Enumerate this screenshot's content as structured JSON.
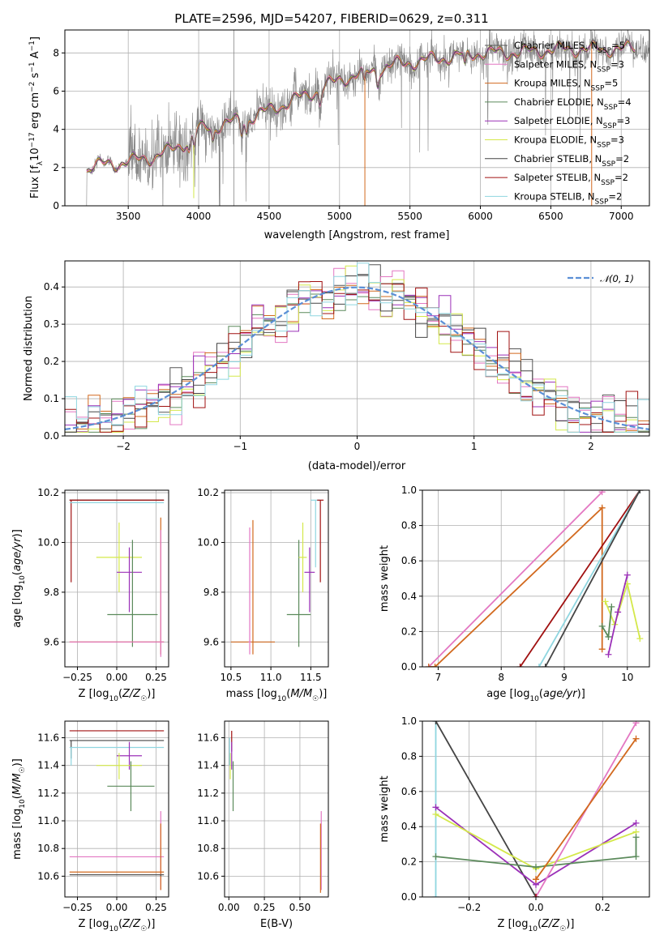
{
  "colors": {
    "chabrier_miles": "#555555",
    "salpeter_miles": "#e377c2",
    "kroupa_miles": "#d2691e",
    "chabrier_elodie": "#5b8a5b",
    "salpeter_elodie": "#9b30b8",
    "kroupa_elodie": "#d4e84a",
    "chabrier_stelib": "#444444",
    "salpeter_stelib": "#a01010",
    "kroupa_stelib": "#8fd6e0",
    "normal": "#5b8fd6"
  },
  "chart_data": [
    {
      "id": "spectrum",
      "type": "line",
      "title": "PLATE=2596, MJD=54207, FIBERID=0629, z=0.311",
      "xlabel": "wavelength [Angstrom, rest frame]",
      "ylabel": "Flux [f_λ 10^-17 erg cm^-2 s^-1 A^-1]",
      "xlim": [
        3050,
        7200
      ],
      "ylim": [
        0,
        9.2
      ],
      "xticks": [
        3500,
        4000,
        4500,
        5000,
        5500,
        6000,
        6500,
        7000
      ],
      "yticks": [
        0,
        2,
        4,
        6,
        8
      ],
      "legend_position": "right",
      "legend": [
        {
          "label": "Chabrier MILES, N_SSP=5",
          "color_key": "chabrier_miles"
        },
        {
          "label": "Salpeter MILES, N_SSP=3",
          "color_key": "salpeter_miles"
        },
        {
          "label": "Kroupa MILES, N_SSP=5",
          "color_key": "kroupa_miles"
        },
        {
          "label": "Chabrier ELODIE, N_SSP=4",
          "color_key": "chabrier_elodie"
        },
        {
          "label": "Salpeter ELODIE, N_SSP=3",
          "color_key": "salpeter_elodie"
        },
        {
          "label": "Kroupa ELODIE, N_SSP=3",
          "color_key": "kroupa_elodie"
        },
        {
          "label": "Chabrier STELIB, N_SSP=2",
          "color_key": "chabrier_stelib"
        },
        {
          "label": "Salpeter STELIB, N_SSP=2",
          "color_key": "salpeter_stelib"
        },
        {
          "label": "Kroupa STELIB, N_SSP=2",
          "color_key": "kroupa_stelib"
        }
      ],
      "continuum": {
        "x": [
          3200,
          3250,
          3400,
          3500,
          3700,
          3800,
          3900,
          4000,
          4200,
          4400,
          4600,
          4800,
          5000,
          5200,
          5400,
          5600,
          5800,
          6000,
          6200,
          6400,
          6600,
          6800,
          7000,
          7200
        ],
        "y": [
          1.9,
          2.1,
          2.2,
          2.3,
          2.6,
          2.9,
          3.3,
          4.0,
          4.3,
          4.7,
          5.3,
          5.9,
          6.6,
          7.0,
          7.4,
          7.6,
          7.8,
          8.0,
          8.0,
          8.1,
          8.2,
          8.2,
          8.2,
          8.3
        ]
      },
      "model_spikes": [
        {
          "x": 3965,
          "y": 0.4,
          "color_key": "kroupa_elodie"
        },
        {
          "x": 5180,
          "y": 0.0,
          "color_key": "kroupa_miles"
        },
        {
          "x": 6790,
          "y": 0.0,
          "color_key": "kroupa_miles"
        }
      ]
    },
    {
      "id": "residuals",
      "type": "histogram",
      "xlabel": "(data-model)/error",
      "ylabel": "Normed distribution",
      "xlim": [
        -2.5,
        2.5
      ],
      "ylim": [
        0,
        0.47
      ],
      "xticks": [
        -2,
        -1,
        0,
        1,
        2
      ],
      "yticks": [
        0,
        0.1,
        0.2,
        0.3,
        0.4
      ],
      "legend_position": "top-right",
      "reference_label": "𝒩(0, 1)",
      "bin_width": 0.1
    },
    {
      "id": "age-vs-Z",
      "type": "scatter",
      "xlabel": "Z [log10(Z/Z☉)]",
      "ylabel": "age  [log10(age/yr)]",
      "xlim": [
        -0.33,
        0.33
      ],
      "ylim": [
        9.5,
        10.21
      ],
      "xticks": [
        -0.25,
        0.0,
        0.25
      ],
      "yticks": [
        9.6,
        9.8,
        10.0,
        10.2
      ],
      "points": [
        {
          "color_key": "chabrier_stelib",
          "x": [
            -0.3,
            0.3
          ],
          "y": 10.17,
          "yerr": [
            10.17,
            10.17
          ]
        },
        {
          "color_key": "salpeter_stelib",
          "x": [
            -0.3,
            0.3
          ],
          "y": 10.17,
          "yerr": [
            9.84,
            10.17
          ]
        },
        {
          "color_key": "kroupa_stelib",
          "x": [
            -0.3,
            0.3
          ],
          "y": 10.16,
          "yerr": [
            10.16,
            10.16
          ]
        },
        {
          "color_key": "kroupa_elodie",
          "x": [
            -0.13,
            0.16
          ],
          "y": 9.94,
          "yerr": [
            9.8,
            10.08
          ]
        },
        {
          "color_key": "salpeter_elodie",
          "x": [
            0.0,
            0.16
          ],
          "y": 9.88,
          "yerr": [
            9.72,
            9.98
          ]
        },
        {
          "color_key": "chabrier_elodie",
          "x": [
            -0.06,
            0.26
          ],
          "y": 9.71,
          "yerr": [
            9.58,
            10.01
          ]
        },
        {
          "color_key": "kroupa_miles",
          "x": [
            -0.3,
            0.3
          ],
          "y": 9.6,
          "yerr": [
            9.55,
            10.1
          ]
        },
        {
          "color_key": "salpeter_miles",
          "x": [
            -0.3,
            0.3
          ],
          "y": 9.6,
          "yerr": [
            9.54,
            10.05
          ]
        }
      ]
    },
    {
      "id": "age-vs-mass",
      "type": "scatter",
      "xlabel": "mass [log10(M/M☉)]",
      "ylabel": "",
      "xlim": [
        10.42,
        11.72
      ],
      "ylim": [
        9.5,
        10.21
      ],
      "xticks": [
        10.5,
        11.0,
        11.5
      ],
      "yticks": [
        9.6,
        9.8,
        10.0,
        10.2
      ],
      "points": [
        {
          "color_key": "kroupa_miles",
          "x": [
            10.5,
            11.05
          ],
          "y": 9.6,
          "yerr": [
            9.55,
            10.09
          ]
        },
        {
          "color_key": "salpeter_miles",
          "x": [
            10.72,
            10.75
          ],
          "y": 9.6,
          "yerr": [
            9.55,
            10.06
          ]
        },
        {
          "color_key": "chabrier_elodie",
          "x": [
            11.2,
            11.5
          ],
          "y": 9.71,
          "yerr": [
            9.58,
            10.01
          ]
        },
        {
          "color_key": "kroupa_elodie",
          "x": [
            11.35,
            11.45
          ],
          "y": 9.94,
          "yerr": [
            9.8,
            10.08
          ]
        },
        {
          "color_key": "salpeter_elodie",
          "x": [
            11.42,
            11.55
          ],
          "y": 9.88,
          "yerr": [
            9.72,
            9.98
          ]
        },
        {
          "color_key": "kroupa_stelib",
          "x": [
            11.5,
            11.62
          ],
          "y": 10.17,
          "yerr": [
            9.9,
            10.17
          ]
        },
        {
          "color_key": "salpeter_stelib",
          "x": [
            11.58,
            11.66
          ],
          "y": 10.17,
          "yerr": [
            9.84,
            10.17
          ]
        }
      ]
    },
    {
      "id": "weight-vs-age",
      "type": "line",
      "xlabel": "age  [log10(age/yr)]",
      "ylabel": "mass weight",
      "xlim": [
        6.75,
        10.35
      ],
      "ylim": [
        0,
        1.0
      ],
      "xticks": [
        7,
        8,
        9,
        10
      ],
      "yticks": [
        0,
        0.2,
        0.4,
        0.6,
        0.8,
        1.0
      ],
      "series": [
        {
          "color_key": "salpeter_miles",
          "x": [
            6.85,
            9.6
          ],
          "y": [
            0.0,
            0.99
          ]
        },
        {
          "color_key": "kroupa_miles",
          "x": [
            6.85,
            6.95,
            9.6,
            9.6
          ],
          "y": [
            0.0,
            0.0,
            0.9,
            0.1
          ]
        },
        {
          "color_key": "salpeter_stelib",
          "x": [
            8.3,
            10.2
          ],
          "y": [
            0.0,
            1.0
          ]
        },
        {
          "color_key": "kroupa_stelib",
          "x": [
            8.6,
            10.2
          ],
          "y": [
            0.0,
            1.0
          ]
        },
        {
          "color_key": "chabrier_stelib",
          "x": [
            8.7,
            10.2
          ],
          "y": [
            0.0,
            1.0
          ]
        },
        {
          "color_key": "kroupa_elodie",
          "x": [
            9.65,
            9.8,
            10.0,
            10.2
          ],
          "y": [
            0.37,
            0.24,
            0.47,
            0.16
          ]
        },
        {
          "color_key": "salpeter_elodie",
          "x": [
            9.7,
            9.85,
            10.0
          ],
          "y": [
            0.07,
            0.31,
            0.52
          ]
        },
        {
          "color_key": "chabrier_elodie",
          "x": [
            9.6,
            9.7,
            9.75
          ],
          "y": [
            0.23,
            0.17,
            0.34
          ]
        }
      ]
    },
    {
      "id": "mass-vs-Z",
      "type": "scatter",
      "xlabel": "Z [log10(Z/Z☉)]",
      "ylabel": "mass [log10(M/M☉)]",
      "xlim": [
        -0.33,
        0.33
      ],
      "ylim": [
        10.45,
        11.72
      ],
      "xticks": [
        -0.25,
        0.0,
        0.25
      ],
      "yticks": [
        10.6,
        10.8,
        11.0,
        11.2,
        11.4,
        11.6
      ],
      "points": [
        {
          "color_key": "salpeter_stelib",
          "x": [
            -0.3,
            0.3
          ],
          "y": 11.65,
          "yerr": [
            11.65,
            11.65
          ]
        },
        {
          "color_key": "chabrier_stelib",
          "x": [
            -0.3,
            0.3
          ],
          "y": 11.58,
          "yerr": [
            11.45,
            11.58
          ]
        },
        {
          "color_key": "kroupa_stelib",
          "x": [
            -0.3,
            0.3
          ],
          "y": 11.53,
          "yerr": [
            11.4,
            11.53
          ]
        },
        {
          "color_key": "salpeter_elodie",
          "x": [
            0.0,
            0.16
          ],
          "y": 11.47,
          "yerr": [
            11.37,
            11.57
          ]
        },
        {
          "color_key": "kroupa_elodie",
          "x": [
            -0.13,
            0.16
          ],
          "y": 11.4,
          "yerr": [
            11.3,
            11.49
          ]
        },
        {
          "color_key": "chabrier_elodie",
          "x": [
            -0.06,
            0.24
          ],
          "y": 11.25,
          "yerr": [
            11.07,
            11.43
          ]
        },
        {
          "color_key": "salpeter_miles",
          "x": [
            -0.3,
            0.3
          ],
          "y": 10.74,
          "yerr": [
            10.5,
            11.07
          ]
        },
        {
          "color_key": "kroupa_miles",
          "x": [
            -0.3,
            0.3
          ],
          "y": 10.63,
          "yerr": [
            10.5,
            10.98
          ]
        },
        {
          "color_key": "chabrier_miles",
          "x": [
            -0.3,
            0.3
          ],
          "y": 10.61,
          "yerr": [
            10.6,
            10.61
          ]
        }
      ]
    },
    {
      "id": "mass-vs-EBV",
      "type": "scatter",
      "xlabel": "E(B-V)",
      "ylabel": "",
      "xlim": [
        -0.03,
        0.7
      ],
      "ylim": [
        10.45,
        11.72
      ],
      "xticks": [
        0.0,
        0.25,
        0.5
      ],
      "yticks": [
        10.6,
        10.8,
        11.0,
        11.2,
        11.4,
        11.6
      ],
      "points": [
        {
          "color_key": "salpeter_stelib",
          "x": [
            0.02,
            0.02
          ],
          "y": 11.6,
          "yerr": [
            11.5,
            11.65
          ]
        },
        {
          "color_key": "chabrier_elodie",
          "x": [
            0.03,
            0.03
          ],
          "y": 11.25,
          "yerr": [
            11.07,
            11.43
          ]
        },
        {
          "color_key": "salpeter_elodie",
          "x": [
            0.02,
            0.02
          ],
          "y": 11.47,
          "yerr": [
            11.37,
            11.57
          ]
        },
        {
          "color_key": "kroupa_elodie",
          "x": [
            0.01,
            0.01
          ],
          "y": 11.4,
          "yerr": [
            11.3,
            11.49
          ]
        },
        {
          "color_key": "kroupa_stelib",
          "x": [
            0.005,
            0.005
          ],
          "y": 11.53,
          "yerr": [
            11.4,
            11.6
          ]
        },
        {
          "color_key": "salpeter_miles",
          "x": [
            0.65,
            0.65
          ],
          "y": 10.74,
          "yerr": [
            10.5,
            11.07
          ]
        },
        {
          "color_key": "kroupa_miles",
          "x": [
            0.645,
            0.645
          ],
          "y": 10.63,
          "yerr": [
            10.48,
            10.98
          ]
        }
      ]
    },
    {
      "id": "weight-vs-Z",
      "type": "line",
      "xlabel": "Z [log10(Z/Z☉)]",
      "ylabel": "mass weight",
      "xlim": [
        -0.34,
        0.34
      ],
      "ylim": [
        0,
        1.0
      ],
      "xticks": [
        -0.2,
        0.0,
        0.2
      ],
      "yticks": [
        0,
        0.2,
        0.4,
        0.6,
        0.8,
        1.0
      ],
      "series": [
        {
          "color_key": "kroupa_stelib",
          "x": [
            -0.3,
            -0.3
          ],
          "y": [
            0.0,
            1.0
          ]
        },
        {
          "color_key": "chabrier_stelib",
          "x": [
            -0.3,
            0.0
          ],
          "y": [
            1.0,
            0.0
          ]
        },
        {
          "color_key": "salpeter_elodie",
          "x": [
            -0.3,
            0.0,
            0.3
          ],
          "y": [
            0.51,
            0.07,
            0.42
          ]
        },
        {
          "color_key": "kroupa_elodie",
          "x": [
            -0.3,
            0.0,
            0.3
          ],
          "y": [
            0.47,
            0.16,
            0.37
          ]
        },
        {
          "color_key": "chabrier_elodie",
          "x": [
            -0.3,
            0.0,
            0.3,
            0.3
          ],
          "y": [
            0.23,
            0.17,
            0.23,
            0.34
          ]
        },
        {
          "color_key": "salpeter_miles",
          "x": [
            0.0,
            0.3
          ],
          "y": [
            0.0,
            0.99
          ]
        },
        {
          "color_key": "kroupa_miles",
          "x": [
            0.0,
            0.0,
            0.3
          ],
          "y": [
            0.1,
            0.1,
            0.9
          ]
        },
        {
          "color_key": "salpeter_stelib",
          "x": [
            0.0,
            0.0
          ],
          "y": [
            0.0,
            0.0
          ]
        }
      ]
    }
  ]
}
